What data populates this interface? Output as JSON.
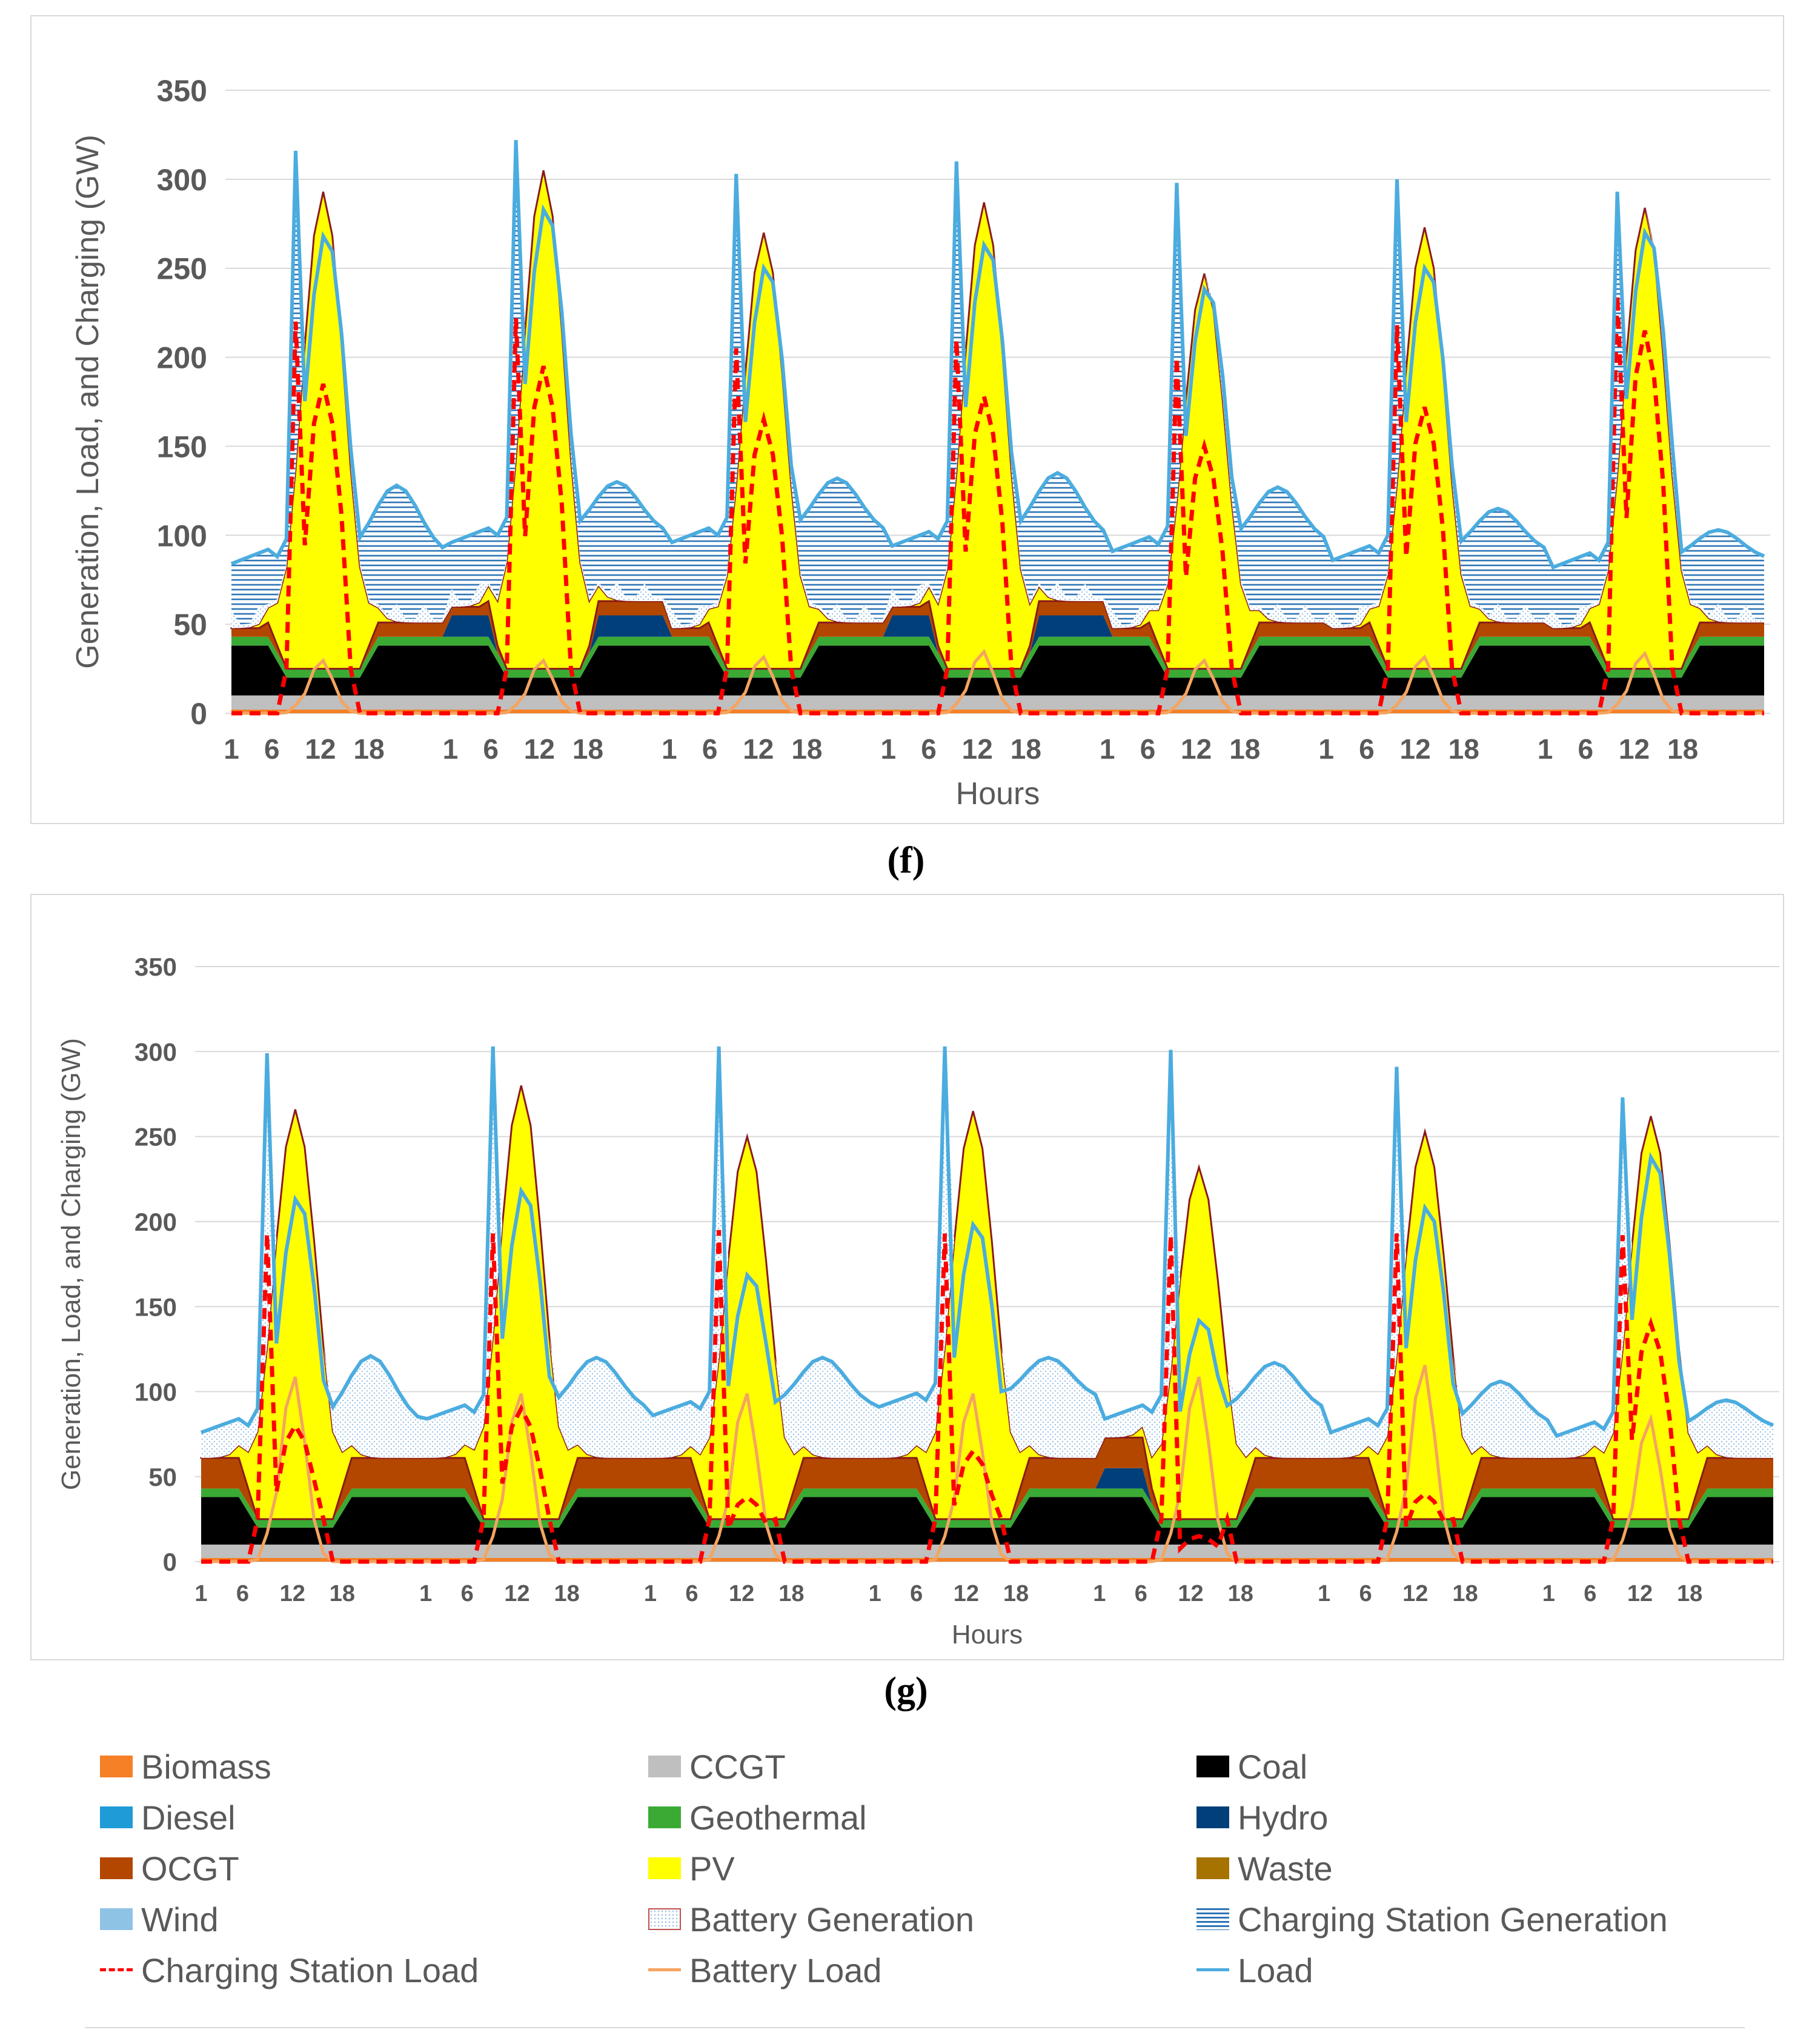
{
  "colors": {
    "biomass": "#f58025",
    "ccgt": "#bfbfbf",
    "coal": "#000000",
    "diesel": "#1f9bd7",
    "geothermal": "#3aaa35",
    "hydro": "#003f7a",
    "ocgt": "#b34700",
    "pv": "#ffff00",
    "waste": "#a67200",
    "wind": "#8ec3e6",
    "battery_generation": "#ffffff",
    "battery_generation_edge": "#c0504d",
    "charging_station_generation": "#2e75b6",
    "charging_station_load": "#ff0000",
    "battery_load": "#f4a460",
    "load": "#4bacdf"
  },
  "chart_data": [
    {
      "id": "f",
      "type": "area",
      "panel_label": "(f)",
      "xlabel": "Hours",
      "ylabel": "Generation, Load, and Charging (GW)",
      "ylim": [
        0,
        350
      ],
      "yticks": [
        "0",
        "50",
        "100",
        "150",
        "200",
        "250",
        "300",
        "350"
      ],
      "xticks": [
        "1",
        "6",
        "12",
        "18",
        "1",
        "6",
        "12",
        "18",
        "1",
        "6",
        "12",
        "18",
        "1",
        "6",
        "12",
        "18",
        "1",
        "6",
        "12",
        "18",
        "1",
        "6",
        "12",
        "18",
        "1",
        "6",
        "12",
        "18"
      ],
      "days": 7,
      "hours_per_day": 24,
      "daily_profile": {
        "ccgt": 10,
        "coal_night": 28,
        "coal_day": 10,
        "geothermal": 5,
        "ocgt_night": 8,
        "pv_peak_total": [
          293,
          305,
          270,
          287,
          247,
          273,
          284
        ],
        "load_spike": [
          316,
          322,
          303,
          310,
          298,
          300,
          293
        ],
        "load_midday": [
          270,
          285,
          252,
          265,
          240,
          252,
          272
        ],
        "load_night_peak": [
          128,
          130,
          132,
          135,
          127,
          115,
          103
        ],
        "load_night_base": [
          88,
          100,
          100,
          98,
          95,
          90,
          86
        ],
        "charging_station_load_peak": [
          220,
          222,
          205,
          210,
          200,
          218,
          235
        ],
        "charging_station_load_mid": [
          185,
          195,
          165,
          178,
          150,
          172,
          215
        ],
        "battery_load_peak": [
          30,
          30,
          32,
          35,
          30,
          32,
          34
        ]
      }
    },
    {
      "id": "g",
      "type": "area",
      "panel_label": "(g)",
      "xlabel": "Hours",
      "ylabel": "Generation, Load, and Charging (GW)",
      "ylim": [
        0,
        350
      ],
      "yticks": [
        "0",
        "50",
        "100",
        "150",
        "200",
        "250",
        "300",
        "350"
      ],
      "xticks": [
        "1",
        "6",
        "12",
        "18",
        "1",
        "6",
        "12",
        "18",
        "1",
        "6",
        "12",
        "18",
        "1",
        "6",
        "12",
        "18",
        "1",
        "6",
        "12",
        "18",
        "1",
        "6",
        "12",
        "18",
        "1",
        "6",
        "12",
        "18"
      ],
      "days": 7,
      "hours_per_day": 24,
      "daily_profile": {
        "ccgt": 10,
        "coal_night": 28,
        "coal_day": 10,
        "geothermal": 5,
        "ocgt_night": 18,
        "pv_peak_total": [
          266,
          280,
          250,
          265,
          232,
          253,
          262
        ],
        "load_spike": [
          299,
          303,
          303,
          303,
          301,
          291,
          273
        ],
        "load_midday": [
          195,
          200,
          150,
          180,
          123,
          190,
          220
        ],
        "load_night_peak": [
          121,
          120,
          120,
          120,
          117,
          106,
          95
        ],
        "load_night_base": [
          80,
          88,
          90,
          95,
          88,
          80,
          78
        ],
        "charging_station_load_peak": [
          193,
          193,
          195,
          193,
          192,
          193,
          192
        ],
        "charging_station_load_mid": [
          80,
          90,
          38,
          65,
          15,
          40,
          140
        ],
        "battery_load_peak": [
          110,
          100,
          100,
          100,
          110,
          117,
          85
        ]
      }
    }
  ],
  "legend": [
    {
      "key": "biomass",
      "label": "Biomass",
      "kind": "fill"
    },
    {
      "key": "ccgt",
      "label": "CCGT",
      "kind": "fill"
    },
    {
      "key": "coal",
      "label": "Coal",
      "kind": "fill"
    },
    {
      "key": "diesel",
      "label": "Diesel",
      "kind": "fill"
    },
    {
      "key": "geothermal",
      "label": "Geothermal",
      "kind": "fill"
    },
    {
      "key": "hydro",
      "label": "Hydro",
      "kind": "fill"
    },
    {
      "key": "ocgt",
      "label": "OCGT",
      "kind": "fill"
    },
    {
      "key": "pv",
      "label": "PV",
      "kind": "fill"
    },
    {
      "key": "waste",
      "label": "Waste",
      "kind": "fill"
    },
    {
      "key": "wind",
      "label": "Wind",
      "kind": "fill"
    },
    {
      "key": "battery_generation",
      "label": "Battery Generation",
      "kind": "dotted"
    },
    {
      "key": "charging_station_generation",
      "label": "Charging Station Generation",
      "kind": "hatched"
    },
    {
      "key": "charging_station_load",
      "label": "Charging Station Load",
      "kind": "dashed"
    },
    {
      "key": "battery_load",
      "label": "Battery Load",
      "kind": "line"
    },
    {
      "key": "load",
      "label": "Load",
      "kind": "line"
    }
  ]
}
